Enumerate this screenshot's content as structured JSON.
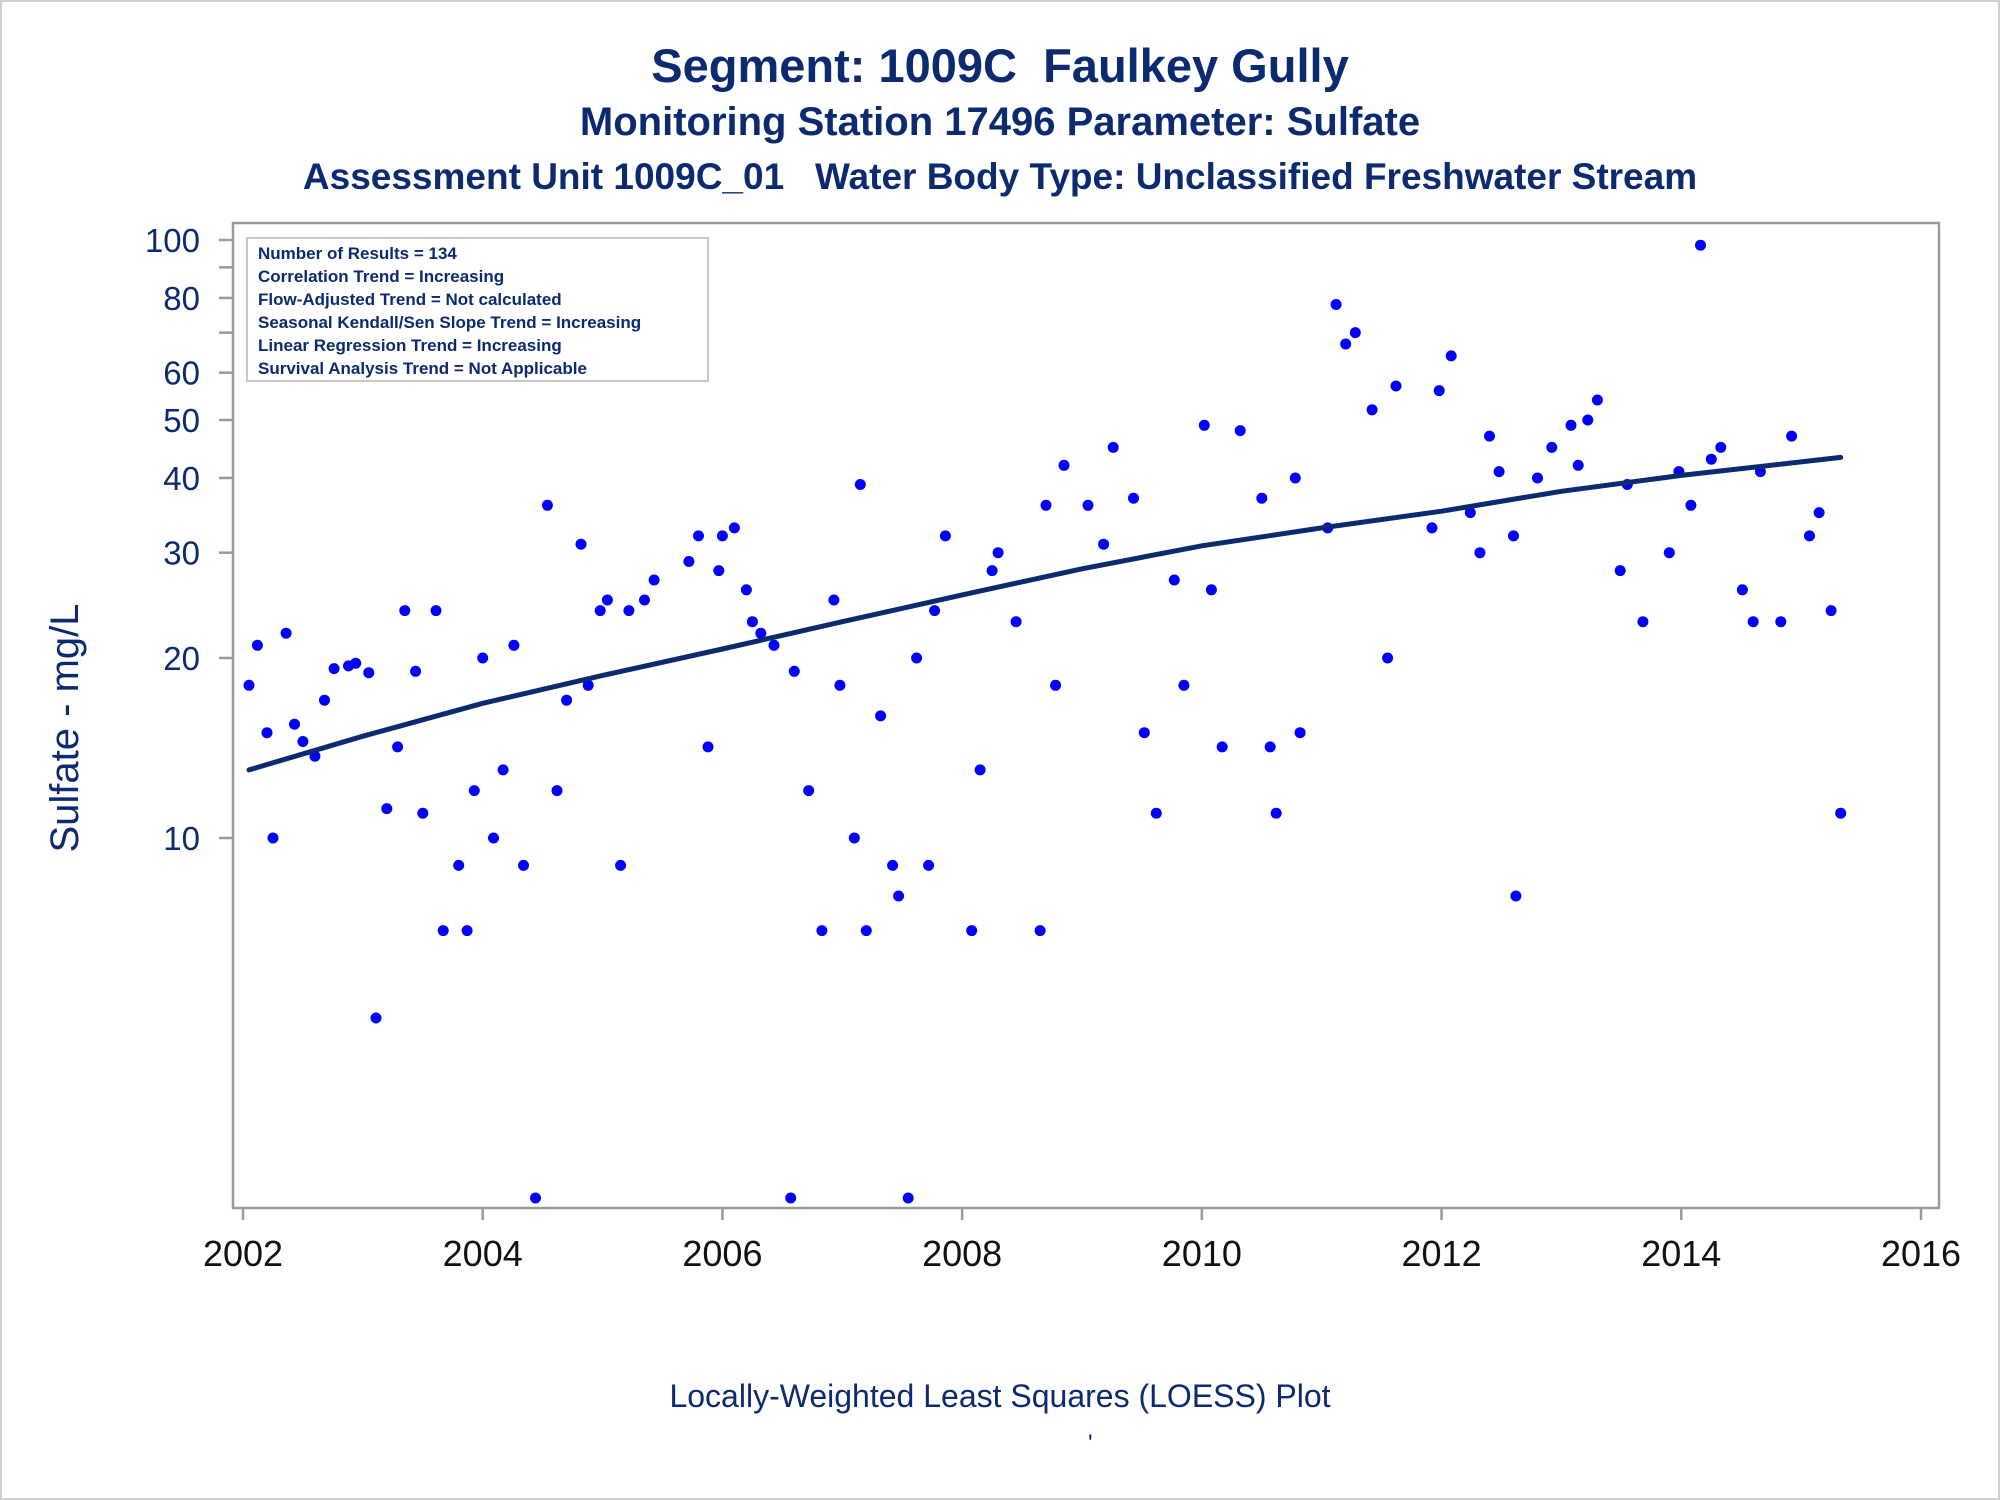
{
  "titles": {
    "line1": "Segment: 1009C  Faulkey Gully",
    "line2": "Monitoring Station 17496 Parameter: Sulfate",
    "line3": "Assessment Unit 1009C_01   Water Body Type: Unclassified Freshwater Stream"
  },
  "footnote": "Locally-Weighted Least Squares (LOESS) Plot",
  "footnote_mark": "'",
  "colors": {
    "text": "#0b2a6f",
    "points": "#0000ff",
    "trend_line": "#0b2a6f",
    "axis": "#9a9a9a"
  },
  "chart_data": {
    "type": "scatter",
    "ylabel": "Sulfate - mg/L",
    "xlabel": "",
    "y_scale": "log",
    "xlim": [
      2002,
      2016
    ],
    "x_ticks": [
      "2002",
      "2004",
      "2006",
      "2008",
      "2010",
      "2012",
      "2014",
      "2016"
    ],
    "y_tick_labels": [
      "10",
      "20",
      "30",
      "40",
      "50",
      "60",
      "80",
      "100"
    ],
    "y_tick_values": [
      10,
      20,
      30,
      40,
      50,
      60,
      80,
      100
    ],
    "y_minor_ticks": [
      70,
      90
    ],
    "legend_box": {
      "placement": "top-left",
      "lines": [
        "Number of Results = 134",
        "Correlation Trend = Increasing",
        "Flow-Adjusted Trend = Not calculated",
        "Seasonal Kendall/Sen Slope Trend = Increasing",
        "Linear Regression Trend = Increasing",
        "Survival Analysis Trend = Not Applicable"
      ]
    },
    "series": [
      {
        "kind": "points",
        "x": [
          2002.05,
          2002.12,
          2002.2,
          2002.25,
          2002.36,
          2002.43,
          2002.5,
          2002.6,
          2002.68,
          2002.76,
          2002.88,
          2002.94,
          2003.05,
          2003.11,
          2003.2,
          2003.29,
          2003.35,
          2003.44,
          2003.5,
          2003.61,
          2003.67,
          2003.8,
          2003.87,
          2003.93,
          2004.0,
          2004.09,
          2004.17,
          2004.26,
          2004.34,
          2004.44,
          2004.54,
          2004.62,
          2004.7,
          2004.82,
          2004.88,
          2004.98,
          2005.04,
          2005.15,
          2005.22,
          2005.35,
          2005.43,
          2005.72,
          2005.8,
          2005.88,
          2005.97,
          2006.0,
          2006.1,
          2006.2,
          2006.25,
          2006.32,
          2006.43,
          2006.57,
          2006.6,
          2006.72,
          2006.83,
          2006.93,
          2006.98,
          2007.1,
          2007.15,
          2007.2,
          2007.32,
          2007.42,
          2007.47,
          2007.55,
          2007.62,
          2007.72,
          2007.77,
          2007.86,
          2008.08,
          2008.15,
          2008.25,
          2008.3,
          2008.45,
          2008.65,
          2008.7,
          2008.78,
          2008.85,
          2009.05,
          2009.18,
          2009.26,
          2009.43,
          2009.52,
          2009.62,
          2009.77,
          2009.85,
          2010.02,
          2010.08,
          2010.17,
          2010.32,
          2010.5,
          2010.57,
          2010.62,
          2010.78,
          2010.82,
          2011.05,
          2011.12,
          2011.2,
          2011.28,
          2011.42,
          2011.55,
          2011.62,
          2011.92,
          2011.98,
          2012.08,
          2012.24,
          2012.32,
          2012.4,
          2012.48,
          2012.6,
          2012.62,
          2012.8,
          2012.92,
          2013.08,
          2013.14,
          2013.22,
          2013.3,
          2013.49,
          2013.55,
          2013.68,
          2013.9,
          2013.98,
          2014.08,
          2014.16,
          2014.25,
          2014.33,
          2014.51,
          2014.6,
          2014.66,
          2014.83,
          2014.92,
          2015.07,
          2015.15,
          2015.25,
          2015.33
        ],
        "y": [
          18,
          21,
          15,
          10,
          22,
          15.5,
          14.5,
          13.7,
          17,
          19.2,
          19.4,
          19.6,
          18.9,
          5,
          11.2,
          14.2,
          24,
          19,
          11,
          24,
          7,
          9,
          7,
          12,
          20,
          10,
          13,
          21,
          9,
          2.5,
          36,
          12,
          17,
          31,
          18,
          24,
          25,
          9,
          24,
          25,
          27,
          29,
          32,
          14.2,
          28,
          32,
          33,
          26,
          23,
          22,
          21,
          2.5,
          19,
          12,
          7,
          25,
          18,
          10,
          39,
          7,
          16,
          9,
          8,
          2.5,
          20,
          9,
          24,
          32,
          7,
          13,
          28,
          30,
          23,
          7,
          36,
          18,
          42,
          36,
          31,
          45,
          37,
          15,
          11,
          27,
          18,
          49,
          26,
          14.2,
          48,
          37,
          14.2,
          11,
          40,
          15,
          33,
          78,
          67,
          70,
          52,
          20,
          57,
          33,
          56,
          64,
          35,
          30,
          47,
          41,
          32,
          8,
          40,
          45,
          49,
          42,
          50,
          54,
          28,
          39,
          23,
          30,
          41,
          36,
          98,
          43,
          45,
          26,
          23,
          41,
          23,
          47,
          32,
          35,
          24,
          11
        ]
      },
      {
        "kind": "loess-line",
        "x": [
          2002.05,
          2003.0,
          2004.0,
          2005.0,
          2006.0,
          2007.0,
          2008.0,
          2009.0,
          2010.0,
          2011.0,
          2012.0,
          2013.0,
          2014.0,
          2015.33
        ],
        "y": [
          13.0,
          14.8,
          16.8,
          18.7,
          20.7,
          23.0,
          25.5,
          28.2,
          30.8,
          33.0,
          35.2,
          38.0,
          40.4,
          43.3
        ]
      }
    ]
  }
}
